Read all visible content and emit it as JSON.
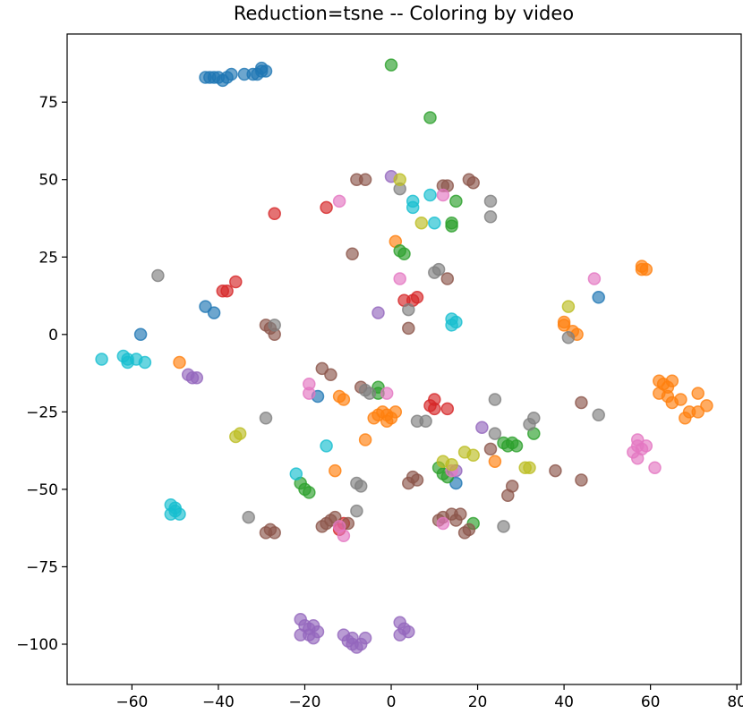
{
  "chart_data": {
    "type": "scatter",
    "title": "Reduction=tsne -- Coloring by video",
    "xlabel": "",
    "ylabel": "",
    "xlim": [
      -75,
      81
    ],
    "ylim": [
      -113,
      97
    ],
    "xticks": [
      -60,
      -40,
      -20,
      0,
      20,
      40,
      60,
      80
    ],
    "yticks": [
      75,
      50,
      25,
      0,
      -25,
      -50,
      -75,
      -100
    ],
    "grid": false,
    "series": [
      {
        "color": "#1f77b4",
        "points": [
          [
            -43,
            83
          ],
          [
            -42,
            83
          ],
          [
            -41,
            83
          ],
          [
            -40,
            83
          ],
          [
            -39,
            82
          ],
          [
            -38,
            83
          ],
          [
            -37,
            84
          ],
          [
            -34,
            84
          ],
          [
            -32,
            84
          ],
          [
            -31,
            84
          ],
          [
            -30,
            85
          ],
          [
            -29,
            85
          ],
          [
            -30,
            86
          ],
          [
            -43,
            9
          ],
          [
            -41,
            7
          ],
          [
            -58,
            0
          ],
          [
            -17,
            -20
          ],
          [
            48,
            12
          ],
          [
            15,
            -48
          ]
        ]
      },
      {
        "color": "#ff7f0e",
        "points": [
          [
            58,
            22
          ],
          [
            58,
            21
          ],
          [
            59,
            21
          ],
          [
            40,
            4
          ],
          [
            40,
            3
          ],
          [
            42,
            1
          ],
          [
            43,
            0
          ],
          [
            -49,
            -9
          ],
          [
            -12,
            -20
          ],
          [
            -11,
            -21
          ],
          [
            -13,
            -44
          ],
          [
            -6,
            -34
          ],
          [
            1,
            30
          ],
          [
            -4,
            -27
          ],
          [
            -3,
            -26
          ],
          [
            -2,
            -25
          ],
          [
            -1,
            -26
          ],
          [
            0,
            -27
          ],
          [
            1,
            -25
          ],
          [
            -1,
            -28
          ],
          [
            62,
            -15
          ],
          [
            63,
            -16
          ],
          [
            64,
            -17
          ],
          [
            65,
            -15
          ],
          [
            62,
            -19
          ],
          [
            64,
            -20
          ],
          [
            65,
            -22
          ],
          [
            67,
            -21
          ],
          [
            71,
            -19
          ],
          [
            73,
            -23
          ],
          [
            69,
            -25
          ],
          [
            68,
            -27
          ],
          [
            71,
            -25
          ],
          [
            24,
            -41
          ]
        ]
      },
      {
        "color": "#2ca02c",
        "points": [
          [
            0,
            87
          ],
          [
            9,
            70
          ],
          [
            15,
            43
          ],
          [
            14,
            36
          ],
          [
            14,
            35
          ],
          [
            2,
            27
          ],
          [
            3,
            26
          ],
          [
            -3,
            -17
          ],
          [
            -3,
            -19
          ],
          [
            11,
            -43
          ],
          [
            12,
            -45
          ],
          [
            13,
            -46
          ],
          [
            26,
            -35
          ],
          [
            27,
            -36
          ],
          [
            28,
            -35
          ],
          [
            29,
            -36
          ],
          [
            33,
            -32
          ],
          [
            19,
            -61
          ],
          [
            -21,
            -48
          ],
          [
            -20,
            -50
          ],
          [
            -19,
            -51
          ]
        ]
      },
      {
        "color": "#d62728",
        "points": [
          [
            -27,
            39
          ],
          [
            -15,
            41
          ],
          [
            -36,
            17
          ],
          [
            -38,
            14
          ],
          [
            -39,
            14
          ],
          [
            3,
            11
          ],
          [
            5,
            11
          ],
          [
            6,
            12
          ],
          [
            10,
            -21
          ],
          [
            9,
            -23
          ],
          [
            10,
            -24
          ],
          [
            13,
            -24
          ],
          [
            -11,
            -61
          ],
          [
            -12,
            -63
          ]
        ]
      },
      {
        "color": "#9467bd",
        "points": [
          [
            0,
            51
          ],
          [
            -3,
            7
          ],
          [
            -47,
            -13
          ],
          [
            -46,
            -14
          ],
          [
            -45,
            -14
          ],
          [
            21,
            -30
          ],
          [
            15,
            -44
          ],
          [
            -21,
            -92
          ],
          [
            -20,
            -94
          ],
          [
            -19,
            -95
          ],
          [
            -18,
            -94
          ],
          [
            -17,
            -96
          ],
          [
            -19,
            -97
          ],
          [
            -21,
            -97
          ],
          [
            -18,
            -98
          ],
          [
            -11,
            -97
          ],
          [
            -10,
            -99
          ],
          [
            -9,
            -100
          ],
          [
            -8,
            -101
          ],
          [
            -7,
            -100
          ],
          [
            -6,
            -98
          ],
          [
            -9,
            -98
          ],
          [
            2,
            -93
          ],
          [
            3,
            -95
          ],
          [
            4,
            -96
          ],
          [
            2,
            -97
          ]
        ]
      },
      {
        "color": "#8c564b",
        "points": [
          [
            -8,
            50
          ],
          [
            -6,
            50
          ],
          [
            -9,
            26
          ],
          [
            12,
            48
          ],
          [
            13,
            48
          ],
          [
            18,
            50
          ],
          [
            19,
            49
          ],
          [
            13,
            18
          ],
          [
            4,
            2
          ],
          [
            -29,
            3
          ],
          [
            -28,
            2
          ],
          [
            -27,
            0
          ],
          [
            -16,
            -11
          ],
          [
            -14,
            -13
          ],
          [
            -7,
            -17
          ],
          [
            -13,
            -59
          ],
          [
            -14,
            -60
          ],
          [
            -15,
            -61
          ],
          [
            -16,
            -62
          ],
          [
            -10,
            -61
          ],
          [
            -28,
            -63
          ],
          [
            -27,
            -64
          ],
          [
            -29,
            -64
          ],
          [
            11,
            -60
          ],
          [
            12,
            -59
          ],
          [
            14,
            -58
          ],
          [
            15,
            -60
          ],
          [
            16,
            -58
          ],
          [
            17,
            -64
          ],
          [
            18,
            -63
          ],
          [
            5,
            -46
          ],
          [
            4,
            -48
          ],
          [
            6,
            -47
          ],
          [
            28,
            -49
          ],
          [
            27,
            -52
          ],
          [
            44,
            -47
          ],
          [
            38,
            -44
          ],
          [
            44,
            -22
          ],
          [
            23,
            -37
          ]
        ]
      },
      {
        "color": "#e377c2",
        "points": [
          [
            -12,
            43
          ],
          [
            12,
            45
          ],
          [
            2,
            18
          ],
          [
            47,
            18
          ],
          [
            -19,
            -16
          ],
          [
            -19,
            -19
          ],
          [
            -1,
            -19
          ],
          [
            57,
            -34
          ],
          [
            57,
            -36
          ],
          [
            58,
            -37
          ],
          [
            59,
            -36
          ],
          [
            56,
            -38
          ],
          [
            57,
            -40
          ],
          [
            61,
            -43
          ],
          [
            14,
            -44
          ],
          [
            12,
            -61
          ],
          [
            -12,
            -62
          ],
          [
            -11,
            -65
          ]
        ]
      },
      {
        "color": "#7f7f7f",
        "points": [
          [
            2,
            47
          ],
          [
            23,
            43
          ],
          [
            23,
            38
          ],
          [
            10,
            20
          ],
          [
            11,
            21
          ],
          [
            4,
            8
          ],
          [
            -54,
            19
          ],
          [
            -27,
            3
          ],
          [
            -6,
            -18
          ],
          [
            -5,
            -19
          ],
          [
            6,
            -28
          ],
          [
            8,
            -28
          ],
          [
            -29,
            -27
          ],
          [
            -7,
            -49
          ],
          [
            -8,
            -48
          ],
          [
            -8,
            -57
          ],
          [
            24,
            -21
          ],
          [
            33,
            -27
          ],
          [
            32,
            -29
          ],
          [
            48,
            -26
          ],
          [
            41,
            -1
          ],
          [
            24,
            -32
          ],
          [
            -33,
            -59
          ],
          [
            26,
            -62
          ]
        ]
      },
      {
        "color": "#bcbd22",
        "points": [
          [
            2,
            50
          ],
          [
            7,
            36
          ],
          [
            41,
            9
          ],
          [
            -36,
            -33
          ],
          [
            -35,
            -32
          ],
          [
            12,
            -41
          ],
          [
            14,
            -42
          ],
          [
            17,
            -38
          ],
          [
            19,
            -39
          ],
          [
            31,
            -43
          ],
          [
            32,
            -43
          ]
        ]
      },
      {
        "color": "#17becf",
        "points": [
          [
            5,
            43
          ],
          [
            5,
            41
          ],
          [
            9,
            45
          ],
          [
            10,
            36
          ],
          [
            14,
            5
          ],
          [
            14,
            3
          ],
          [
            15,
            4
          ],
          [
            -67,
            -8
          ],
          [
            -62,
            -7
          ],
          [
            -61,
            -9
          ],
          [
            -59,
            -8
          ],
          [
            -57,
            -9
          ],
          [
            -61,
            -8
          ],
          [
            -15,
            -36
          ],
          [
            -22,
            -45
          ],
          [
            -51,
            -55
          ],
          [
            -50,
            -56
          ],
          [
            -50,
            -57
          ],
          [
            -49,
            -58
          ],
          [
            -51,
            -58
          ]
        ]
      }
    ]
  }
}
